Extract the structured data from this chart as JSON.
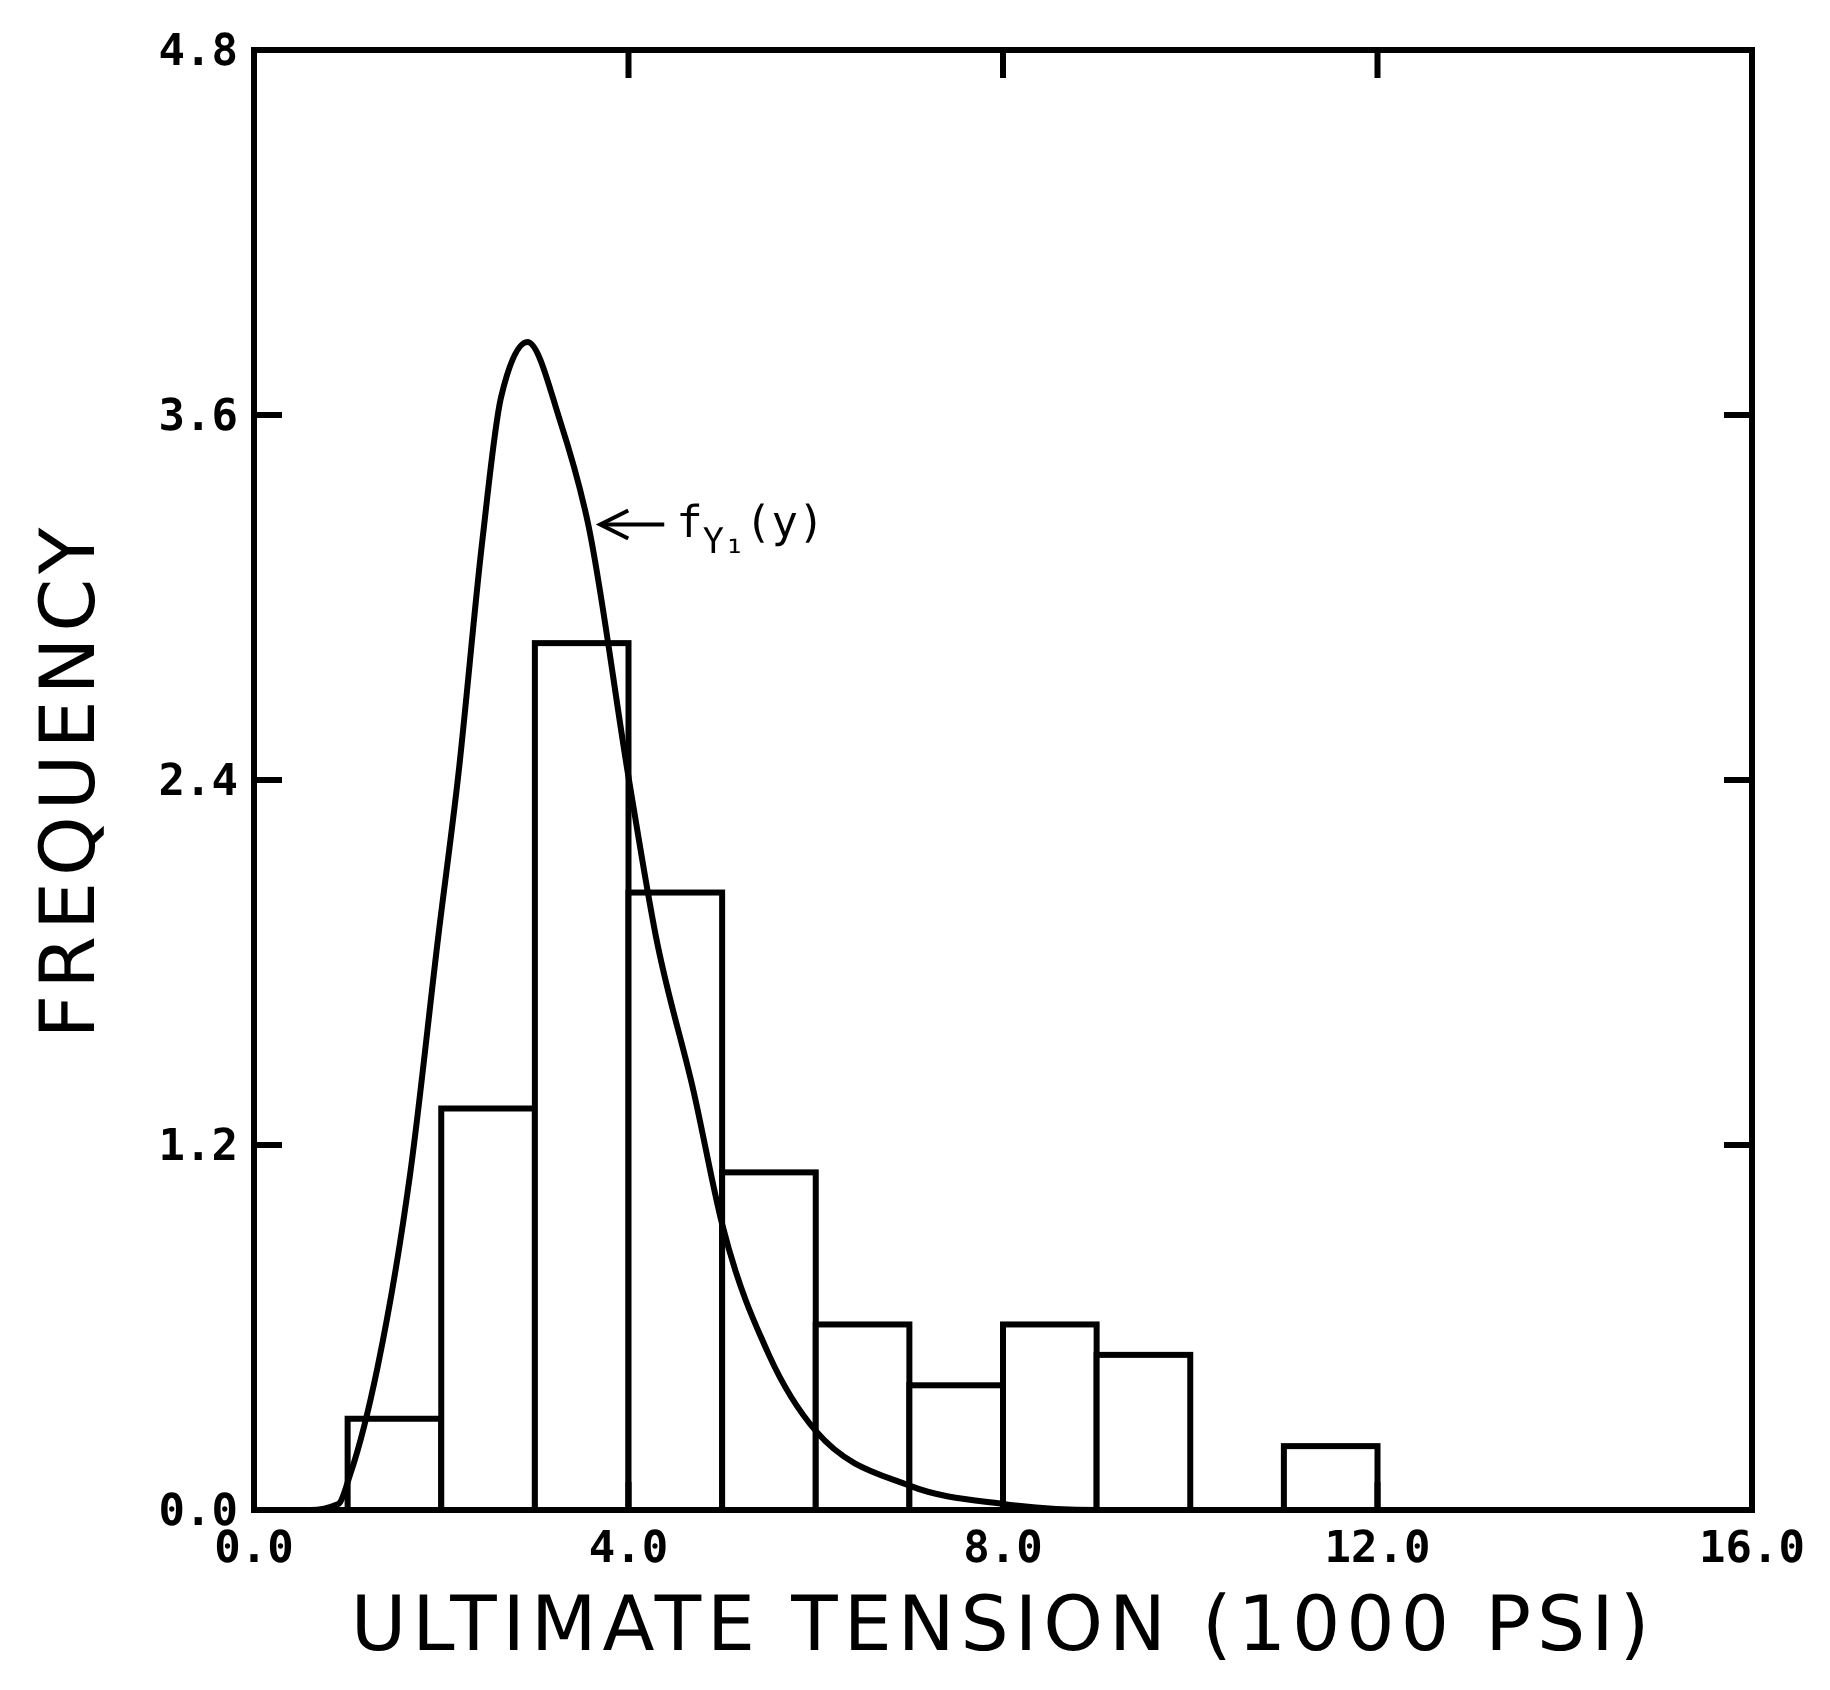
{
  "chart_data": {
    "type": "histogram",
    "xlabel": "ULTIMATE TENSION (1000 PSI)",
    "ylabel": "FREQUENCY",
    "bins": [
      1,
      2,
      3,
      4,
      5,
      6,
      7,
      8,
      9,
      10,
      11,
      12
    ],
    "values": [
      0.3,
      1.32,
      2.85,
      2.03,
      1.11,
      0.61,
      0.41,
      0.61,
      0.51,
      0,
      0.21
    ],
    "color": "#000000",
    "series": [
      {
        "type": "line",
        "color": "#000000",
        "x": [
          0,
          0.6,
          0.9,
          1.03,
          1.32,
          1.67,
          1.97,
          2.18,
          2.44,
          2.64,
          2.92,
          3.27,
          3.57,
          4.0,
          4.29,
          4.7,
          5.0,
          5.5,
          6.0,
          7.0,
          8.0,
          9.0,
          16.0
        ],
        "values": [
          0,
          0,
          0.02,
          0.12,
          0.47,
          1.11,
          1.89,
          2.41,
          3.19,
          3.66,
          3.84,
          3.58,
          3.24,
          2.41,
          1.89,
          1.37,
          0.94,
          0.51,
          0.26,
          0.08,
          0.02,
          0,
          0
        ]
      }
    ],
    "annotations": [
      {
        "text": "f$_{Y₁}$(y)",
        "x": 3.57,
        "y": 3.24
      }
    ],
    "xlim": [
      0,
      16
    ],
    "xticks": [
      {
        "value": 0,
        "label": "0.0"
      },
      {
        "value": 4,
        "label": "4.0"
      },
      {
        "value": 8,
        "label": "8.0"
      },
      {
        "value": 12,
        "label": "12.0"
      },
      {
        "value": 16,
        "label": "16.0"
      }
    ],
    "ylim": [
      0,
      4.8
    ],
    "yticks": [
      {
        "value": 0,
        "label": "0.0"
      },
      {
        "value": 1.2,
        "label": "1.2"
      },
      {
        "value": 2.4,
        "label": "2.4"
      },
      {
        "value": 3.6,
        "label": "3.6"
      },
      {
        "value": 4.8,
        "label": "4.8"
      }
    ],
    "grid": false
  }
}
